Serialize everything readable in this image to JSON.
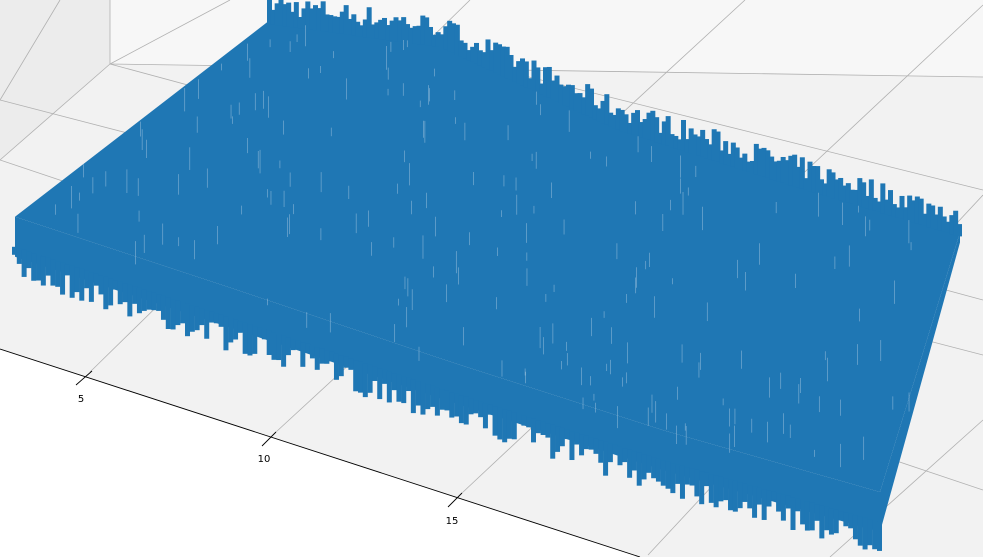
{
  "chart_data": {
    "type": "surface",
    "projection": "3d",
    "title": "",
    "xlabel": "",
    "ylabel": "",
    "zlabel": "",
    "grid": true,
    "x_ticks": [
      5,
      10,
      15
    ],
    "x_tick_labels": [
      "5",
      "10",
      "15"
    ],
    "xlim": [
      0,
      20
    ],
    "ylim": [
      0,
      20
    ],
    "zlim": [
      0,
      1
    ],
    "series_color": "#1f77b4",
    "pane_color": "#f2f2f2",
    "grid_color": "#b0b0b0",
    "z_profile": {
      "y": [
        0,
        5,
        10,
        15,
        20
      ],
      "near_edge_z": [
        0.62,
        0.6,
        0.57,
        0.56,
        0.6
      ],
      "far_edge_z": [
        0.8,
        0.95,
        0.74,
        0.69,
        0.66
      ]
    }
  }
}
